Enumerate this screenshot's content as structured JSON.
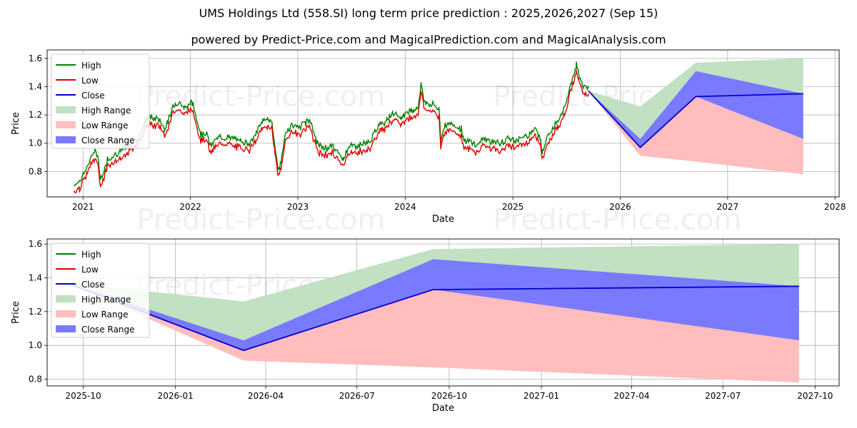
{
  "titles": {
    "main": "UMS Holdings Ltd (558.SI) long term price prediction : 2025,2026,2027 (Sep 15)",
    "sub": "powered by Predict-Price.com and MagicalPrediction.com and MagicalAnalysis.com"
  },
  "watermark": "Predict-Price.com",
  "colors": {
    "high": "#008000",
    "low": "#e00000",
    "close": "#0000cc",
    "high_range": "#c2e0c2",
    "low_range": "#ffbdbd",
    "close_range": "#7a7aff"
  },
  "chart_data": [
    {
      "type": "line",
      "xlabel": "Date",
      "ylabel": "Price",
      "xlim": [
        "2020-09-01",
        "2028-01-15"
      ],
      "ylim": [
        0.62,
        1.66
      ],
      "x_ticks": [
        "2021",
        "2022",
        "2023",
        "2024",
        "2025",
        "2026",
        "2027",
        "2028"
      ],
      "y_ticks": [
        "0.8",
        "1.0",
        "1.2",
        "1.4",
        "1.6"
      ],
      "grid": true,
      "legend": "top-left",
      "legend_entries": [
        "High",
        "Low",
        "Close",
        "High Range",
        "Low Range",
        "Close Range"
      ],
      "history_close": [
        [
          "2020-12-01",
          0.68
        ],
        [
          "2020-12-20",
          0.71
        ],
        [
          "2021-01-10",
          0.78
        ],
        [
          "2021-01-25",
          0.86
        ],
        [
          "2021-02-05",
          0.91
        ],
        [
          "2021-02-20",
          0.9
        ],
        [
          "2021-03-01",
          0.73
        ],
        [
          "2021-03-10",
          0.75
        ],
        [
          "2021-03-25",
          0.86
        ],
        [
          "2021-04-15",
          0.89
        ],
        [
          "2021-05-10",
          0.92
        ],
        [
          "2021-06-01",
          0.95
        ],
        [
          "2021-06-20",
          0.98
        ],
        [
          "2021-07-10",
          1.02
        ],
        [
          "2021-07-25",
          1.1
        ],
        [
          "2021-08-10",
          1.16
        ],
        [
          "2021-09-01",
          1.15
        ],
        [
          "2021-09-20",
          1.14
        ],
        [
          "2021-10-05",
          1.08
        ],
        [
          "2021-10-25",
          1.17
        ],
        [
          "2021-11-05",
          1.25
        ],
        [
          "2021-11-25",
          1.27
        ],
        [
          "2021-12-10",
          1.22
        ],
        [
          "2022-01-01",
          1.26
        ],
        [
          "2022-01-10",
          1.25
        ],
        [
          "2022-01-20",
          1.17
        ],
        [
          "2022-02-05",
          1.04
        ],
        [
          "2022-02-25",
          1.05
        ],
        [
          "2022-03-10",
          0.95
        ],
        [
          "2022-03-25",
          1.0
        ],
        [
          "2022-04-20",
          1.02
        ],
        [
          "2022-05-20",
          1.01
        ],
        [
          "2022-06-20",
          0.99
        ],
        [
          "2022-07-20",
          0.98
        ],
        [
          "2022-08-10",
          1.03
        ],
        [
          "2022-09-01",
          1.13
        ],
        [
          "2022-09-20",
          1.15
        ],
        [
          "2022-10-05",
          1.12
        ],
        [
          "2022-10-15",
          0.96
        ],
        [
          "2022-10-25",
          0.8
        ],
        [
          "2022-11-05",
          0.83
        ],
        [
          "2022-11-20",
          1.05
        ],
        [
          "2022-12-10",
          1.1
        ],
        [
          "2023-01-10",
          1.09
        ],
        [
          "2023-01-25",
          1.12
        ],
        [
          "2023-02-10",
          1.15
        ],
        [
          "2023-02-25",
          1.04
        ],
        [
          "2023-03-15",
          0.95
        ],
        [
          "2023-04-10",
          0.94
        ],
        [
          "2023-04-25",
          0.96
        ],
        [
          "2023-05-20",
          0.9
        ],
        [
          "2023-06-05",
          0.86
        ],
        [
          "2023-06-20",
          0.95
        ],
        [
          "2023-07-20",
          0.96
        ],
        [
          "2023-08-10",
          0.97
        ],
        [
          "2023-09-01",
          0.98
        ],
        [
          "2023-09-20",
          1.05
        ],
        [
          "2023-10-05",
          1.11
        ],
        [
          "2023-10-25",
          1.13
        ],
        [
          "2023-11-10",
          1.18
        ],
        [
          "2023-12-01",
          1.17
        ],
        [
          "2023-12-20",
          1.16
        ],
        [
          "2024-01-10",
          1.2
        ],
        [
          "2024-01-30",
          1.21
        ],
        [
          "2024-02-15",
          1.24
        ],
        [
          "2024-02-25",
          1.4
        ],
        [
          "2024-03-05",
          1.28
        ],
        [
          "2024-03-20",
          1.25
        ],
        [
          "2024-04-10",
          1.24
        ],
        [
          "2024-04-25",
          1.22
        ],
        [
          "2024-05-01",
          0.99
        ],
        [
          "2024-05-10",
          1.09
        ],
        [
          "2024-05-25",
          1.12
        ],
        [
          "2024-06-15",
          1.1
        ],
        [
          "2024-07-10",
          1.08
        ],
        [
          "2024-07-20",
          0.98
        ],
        [
          "2024-08-10",
          0.99
        ],
        [
          "2024-09-01",
          0.96
        ],
        [
          "2024-09-20",
          1.01
        ],
        [
          "2024-10-20",
          0.99
        ],
        [
          "2024-11-20",
          0.97
        ],
        [
          "2024-12-15",
          1.01
        ],
        [
          "2025-01-10",
          1.0
        ],
        [
          "2025-02-10",
          1.02
        ],
        [
          "2025-03-01",
          1.05
        ],
        [
          "2025-03-20",
          1.08
        ],
        [
          "2025-04-05",
          1.02
        ],
        [
          "2025-04-10",
          0.9
        ],
        [
          "2025-04-25",
          1.0
        ],
        [
          "2025-05-10",
          1.06
        ],
        [
          "2025-06-01",
          1.14
        ],
        [
          "2025-06-20",
          1.2
        ],
        [
          "2025-07-05",
          1.3
        ],
        [
          "2025-07-20",
          1.42
        ],
        [
          "2025-08-05",
          1.53
        ],
        [
          "2025-08-15",
          1.44
        ],
        [
          "2025-08-25",
          1.39
        ],
        [
          "2025-09-05",
          1.38
        ],
        [
          "2025-09-15",
          1.37
        ]
      ],
      "forecast": {
        "x": [
          "2025-09-15",
          "2026-03-10",
          "2026-09-15",
          "2027-09-15"
        ],
        "close": [
          1.37,
          0.97,
          1.33,
          1.35
        ],
        "high_range_upper": [
          1.37,
          1.26,
          1.57,
          1.6
        ],
        "close_range_upper": [
          1.37,
          1.03,
          1.51,
          1.35
        ],
        "close_range_lower": [
          1.37,
          0.97,
          1.33,
          1.03
        ],
        "low_range_lower": [
          1.37,
          0.91,
          0.87,
          0.78
        ]
      }
    },
    {
      "type": "line",
      "xlabel": "Date",
      "ylabel": "Price",
      "xlim": [
        "2025-08-26",
        "2027-10-25"
      ],
      "ylim": [
        0.76,
        1.63
      ],
      "x_ticks": [
        "2025-10",
        "2026-01",
        "2026-04",
        "2026-07",
        "2026-10",
        "2027-01",
        "2027-04",
        "2027-07",
        "2027-10"
      ],
      "y_ticks": [
        "0.8",
        "1.0",
        "1.2",
        "1.4",
        "1.6"
      ],
      "grid": true,
      "legend": "top-left",
      "legend_entries": [
        "High",
        "Low",
        "Close",
        "High Range",
        "Low Range",
        "Close Range"
      ]
    }
  ]
}
